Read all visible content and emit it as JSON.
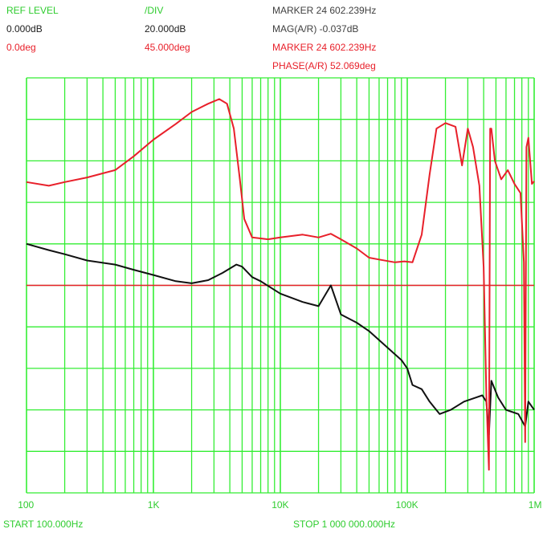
{
  "header": {
    "ref_level_label": "REF LEVEL",
    "div_label": "/DIV",
    "ref_mag": "0.000dB",
    "div_mag": "20.000dB",
    "ref_phase": "0.0deg",
    "div_phase": "45.000deg",
    "marker_mag": "MARKER 24 602.239Hz",
    "mag_value": "MAG(A/R)  -0.037dB",
    "marker_phase": "MARKER 24 602.239Hz",
    "phase_value": "PHASE(A/R)  52.069deg"
  },
  "footer": {
    "start": "START 100.000Hz",
    "stop": "STOP 1 000 000.000Hz"
  },
  "colors": {
    "grid": "#33ee33",
    "magnitude": "#111111",
    "phase": "#e8202a",
    "reference": "#e8202a",
    "text_green": "#2ecc2e"
  },
  "chart_data": {
    "type": "line",
    "x_scale": "log",
    "xlim": [
      100,
      1000000
    ],
    "x_tick_labels": [
      "100",
      "1K",
      "10K",
      "100K",
      "1M"
    ],
    "x_tick_values": [
      100,
      1000,
      10000,
      100000,
      1000000
    ],
    "grid": true,
    "y_divisions": 10,
    "series": [
      {
        "name": "MAG(A/R)",
        "unit": "dB",
        "ref_level": 0,
        "per_div": 20,
        "ylim": [
          -100,
          100
        ],
        "points": [
          [
            100,
            20
          ],
          [
            150,
            17
          ],
          [
            200,
            15
          ],
          [
            300,
            12
          ],
          [
            500,
            10
          ],
          [
            700,
            7.5
          ],
          [
            1000,
            5
          ],
          [
            1500,
            2
          ],
          [
            2000,
            1
          ],
          [
            2700,
            2.5
          ],
          [
            3500,
            6
          ],
          [
            4500,
            10
          ],
          [
            5000,
            9
          ],
          [
            6000,
            4
          ],
          [
            7000,
            2
          ],
          [
            10000,
            -4
          ],
          [
            15000,
            -8
          ],
          [
            20000,
            -10
          ],
          [
            25000,
            0
          ],
          [
            30000,
            -14
          ],
          [
            40000,
            -18
          ],
          [
            50000,
            -22
          ],
          [
            70000,
            -30
          ],
          [
            90000,
            -36
          ],
          [
            100000,
            -40
          ],
          [
            110000,
            -48
          ],
          [
            130000,
            -50
          ],
          [
            150000,
            -56
          ],
          [
            180000,
            -62
          ],
          [
            220000,
            -60
          ],
          [
            280000,
            -56
          ],
          [
            350000,
            -54
          ],
          [
            390000,
            -53
          ],
          [
            420000,
            -56
          ],
          [
            440000,
            -72
          ],
          [
            460000,
            -46
          ],
          [
            520000,
            -54
          ],
          [
            600000,
            -60
          ],
          [
            750000,
            -62
          ],
          [
            850000,
            -68
          ],
          [
            900000,
            -56
          ],
          [
            1000000,
            -60
          ]
        ]
      },
      {
        "name": "PHASE(A/R)",
        "unit": "deg",
        "ref_level": 0,
        "per_div": 45,
        "ylim": [
          -225,
          225
        ],
        "points": [
          [
            100,
            112
          ],
          [
            150,
            108
          ],
          [
            200,
            112
          ],
          [
            300,
            117
          ],
          [
            500,
            125
          ],
          [
            700,
            140
          ],
          [
            1000,
            158
          ],
          [
            1500,
            175
          ],
          [
            2000,
            188
          ],
          [
            2700,
            197
          ],
          [
            3300,
            202
          ],
          [
            3800,
            197
          ],
          [
            4300,
            170
          ],
          [
            4800,
            115
          ],
          [
            5200,
            72
          ],
          [
            6000,
            52
          ],
          [
            8000,
            50
          ],
          [
            10000,
            52
          ],
          [
            15000,
            55
          ],
          [
            20000,
            52
          ],
          [
            25000,
            56
          ],
          [
            30000,
            50
          ],
          [
            40000,
            40
          ],
          [
            50000,
            30
          ],
          [
            60000,
            28
          ],
          [
            80000,
            25
          ],
          [
            95000,
            26
          ],
          [
            110000,
            25
          ],
          [
            130000,
            55
          ],
          [
            150000,
            120
          ],
          [
            170000,
            170
          ],
          [
            200000,
            176
          ],
          [
            240000,
            172
          ],
          [
            270000,
            130
          ],
          [
            300000,
            170
          ],
          [
            330000,
            150
          ],
          [
            370000,
            108
          ],
          [
            400000,
            20
          ],
          [
            420000,
            -120
          ],
          [
            440000,
            -200
          ],
          [
            450000,
            170
          ],
          [
            460000,
            170
          ],
          [
            490000,
            135
          ],
          [
            550000,
            115
          ],
          [
            620000,
            125
          ],
          [
            700000,
            110
          ],
          [
            780000,
            100
          ],
          [
            830000,
            25
          ],
          [
            850000,
            -170
          ],
          [
            870000,
            150
          ],
          [
            900000,
            160
          ],
          [
            960000,
            110
          ],
          [
            1000000,
            113
          ]
        ]
      }
    ]
  }
}
